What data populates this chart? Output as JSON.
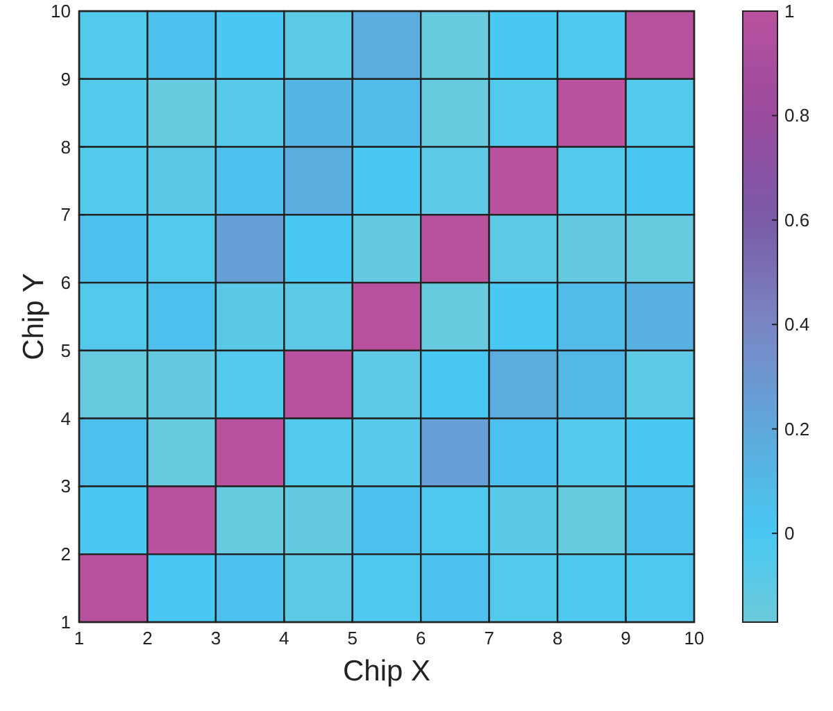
{
  "chart_data": {
    "type": "heatmap",
    "xlabel": "Chip X",
    "ylabel": "Chip Y",
    "xlim": [
      1,
      10
    ],
    "xticks": [
      1,
      2,
      3,
      4,
      5,
      6,
      7,
      8,
      9,
      10
    ],
    "ylim": [
      1,
      10
    ],
    "yticks": [
      1,
      2,
      3,
      4,
      5,
      6,
      7,
      8,
      9,
      10
    ],
    "clim": [
      -0.17,
      1
    ],
    "cticks": [
      0,
      0.2,
      0.4,
      0.6,
      0.8,
      1
    ],
    "cells": [
      [
        -0.05,
        0.05,
        0,
        -0.1,
        0.17,
        -0.15,
        0,
        -0.03,
        1
      ],
      [
        -0.05,
        -0.15,
        -0.07,
        0.12,
        0.08,
        -0.15,
        -0.05,
        1,
        -0.05
      ],
      [
        -0.05,
        -0.08,
        0.05,
        0.17,
        0,
        -0.1,
        1,
        -0.05,
        0
      ],
      [
        0.05,
        -0.05,
        0.25,
        0,
        -0.13,
        1,
        -0.1,
        -0.13,
        -0.15
      ],
      [
        -0.05,
        0.05,
        -0.08,
        -0.1,
        1,
        -0.15,
        0,
        0.08,
        0.15
      ],
      [
        -0.15,
        -0.13,
        -0.05,
        1,
        -0.1,
        0,
        0.17,
        0.1,
        -0.1
      ],
      [
        0.05,
        -0.15,
        1,
        -0.05,
        -0.07,
        0.25,
        0.05,
        -0.05,
        0
      ],
      [
        0,
        1,
        -0.15,
        -0.13,
        0.05,
        -0.03,
        -0.08,
        -0.15,
        0.05
      ],
      [
        1,
        0,
        0.05,
        -0.1,
        -0.03,
        0.05,
        -0.05,
        -0.03,
        -0.03
      ]
    ]
  }
}
